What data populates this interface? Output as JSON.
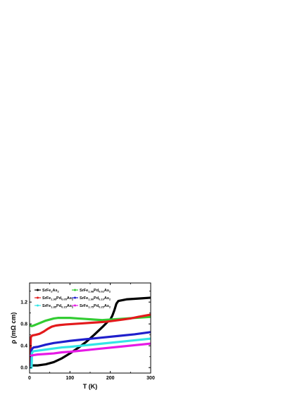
{
  "chart_data": {
    "type": "line",
    "title": "",
    "xlabel": "T (K)",
    "ylabel": "ρ (mΩ cm)",
    "xlim": [
      0,
      300
    ],
    "ylim": [
      -0.1,
      1.55
    ],
    "xticks": [
      0,
      100,
      200,
      300
    ],
    "yticks": [
      0.0,
      0.4,
      0.8,
      1.2
    ],
    "xtick_labels": [
      "0",
      "100",
      "200",
      "300"
    ],
    "ytick_labels": [
      "0.0",
      "0.4",
      "0.8",
      "1.2"
    ],
    "grid": false,
    "legend_position": "top",
    "series": [
      {
        "name": "SrFe2As2",
        "legend_label": {
          "base": "SrFe",
          "parts": [
            [
              "2",
              "sub"
            ],
            [
              "As",
              ""
            ],
            [
              "2",
              "sub"
            ]
          ]
        },
        "color": "#000000",
        "x": [
          2,
          5,
          10,
          20,
          40,
          60,
          80,
          100,
          120,
          140,
          160,
          180,
          195,
          200,
          205,
          210,
          215,
          220,
          240,
          260,
          280,
          300
        ],
        "y": [
          0.05,
          0.04,
          0.04,
          0.04,
          0.06,
          0.1,
          0.17,
          0.26,
          0.36,
          0.47,
          0.6,
          0.74,
          0.85,
          0.88,
          0.95,
          1.05,
          1.17,
          1.22,
          1.25,
          1.26,
          1.27,
          1.28
        ]
      },
      {
        "name": "SrFe1.98Pd0.02As2",
        "legend_label": {
          "base": "SrFe",
          "parts": [
            [
              "1.98",
              "sub"
            ],
            [
              "Pd",
              ""
            ],
            [
              "0.02",
              "sub"
            ],
            [
              "As",
              ""
            ],
            [
              "2",
              "sub"
            ]
          ]
        },
        "color": "#33cc33",
        "x": [
          2,
          5,
          10,
          20,
          40,
          60,
          70,
          80,
          100,
          120,
          140,
          160,
          180,
          200,
          220,
          240,
          260,
          280,
          300
        ],
        "y": [
          0.77,
          0.76,
          0.77,
          0.8,
          0.86,
          0.9,
          0.91,
          0.91,
          0.91,
          0.9,
          0.89,
          0.88,
          0.87,
          0.88,
          0.89,
          0.9,
          0.91,
          0.92,
          0.93
        ]
      },
      {
        "name": "SrFe1.95Pd0.05As2",
        "legend_label": {
          "base": "SrFe",
          "parts": [
            [
              "1.95",
              "sub"
            ],
            [
              "Pd",
              ""
            ],
            [
              "0.05",
              "sub"
            ],
            [
              "As",
              ""
            ],
            [
              "2",
              "sub"
            ]
          ]
        },
        "color": "#e31a1c",
        "x": [
          1.5,
          3,
          5,
          8,
          15,
          25,
          35,
          45,
          55,
          65,
          75,
          90,
          110,
          130,
          150,
          170,
          190,
          210,
          230,
          250,
          270,
          300
        ],
        "y": [
          0.0,
          0.55,
          0.58,
          0.59,
          0.6,
          0.62,
          0.66,
          0.71,
          0.75,
          0.77,
          0.78,
          0.79,
          0.8,
          0.81,
          0.82,
          0.83,
          0.84,
          0.86,
          0.88,
          0.9,
          0.93,
          0.97
        ]
      },
      {
        "name": "SrFe1.90Pd0.10As2",
        "legend_label": {
          "base": "SrFe",
          "parts": [
            [
              "1.90",
              "sub"
            ],
            [
              "Pd",
              ""
            ],
            [
              "0.10",
              "sub"
            ],
            [
              "As",
              ""
            ],
            [
              "2",
              "sub"
            ]
          ]
        },
        "color": "#1f1fcc",
        "x": [
          2,
          4,
          5,
          7,
          10,
          20,
          40,
          60,
          80,
          100,
          140,
          180,
          220,
          260,
          300
        ],
        "y": [
          0.0,
          0.0,
          0.33,
          0.35,
          0.37,
          0.38,
          0.42,
          0.45,
          0.47,
          0.49,
          0.52,
          0.55,
          0.58,
          0.61,
          0.65
        ]
      },
      {
        "name": "SrFe1.85Pd0.15As2",
        "legend_label": {
          "base": "SrFe",
          "parts": [
            [
              "1.85",
              "sub"
            ],
            [
              "Pd",
              ""
            ],
            [
              "0.15",
              "sub"
            ],
            [
              "As",
              ""
            ],
            [
              "2",
              "sub"
            ]
          ]
        },
        "color": "#33e6e6",
        "x": [
          2,
          5,
          6,
          8,
          10,
          20,
          40,
          60,
          80,
          100,
          140,
          180,
          220,
          260,
          300
        ],
        "y": [
          0.0,
          0.0,
          0.27,
          0.29,
          0.3,
          0.31,
          0.33,
          0.35,
          0.37,
          0.38,
          0.41,
          0.44,
          0.47,
          0.5,
          0.53
        ]
      },
      {
        "name": "SrFe1.75Pd0.25As2",
        "legend_label": {
          "base": "SrFe",
          "parts": [
            [
              "1.75",
              "sub"
            ],
            [
              "Pd",
              ""
            ],
            [
              "0.25",
              "sub"
            ],
            [
              "As",
              ""
            ],
            [
              "2",
              "sub"
            ]
          ]
        },
        "color": "#e61ae6",
        "x": [
          2,
          5,
          10,
          20,
          40,
          60,
          80,
          100,
          140,
          180,
          220,
          260,
          300
        ],
        "y": [
          0.22,
          0.22,
          0.23,
          0.24,
          0.25,
          0.26,
          0.28,
          0.29,
          0.32,
          0.35,
          0.38,
          0.41,
          0.44
        ]
      }
    ]
  }
}
